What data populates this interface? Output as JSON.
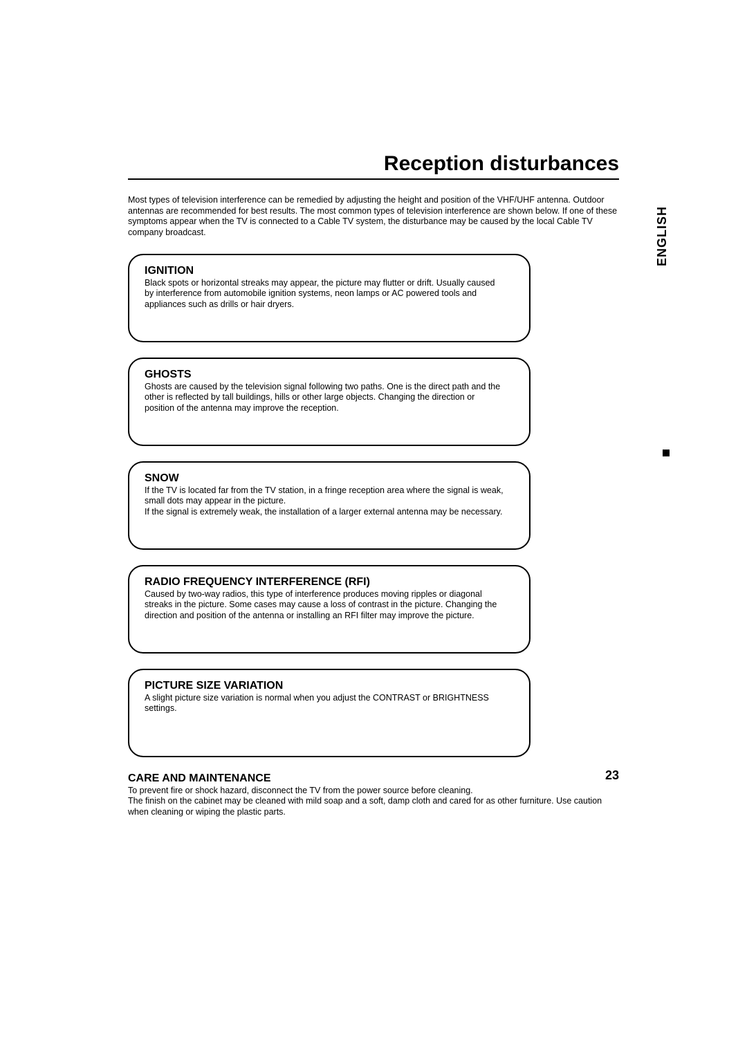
{
  "page_title": "Reception disturbances",
  "language_label": "ENGLISH",
  "page_number": "23",
  "intro": "Most types of television interference can be remedied by adjusting the height and position of the VHF/UHF antenna. Outdoor antennas are recommended for best results. The most common types of television interference are shown below. If one of these symptoms appear when the TV is connected to a Cable TV system, the disturbance may be caused by the local Cable TV company broadcast.",
  "boxes": [
    {
      "title": "IGNITION",
      "body": "Black spots or horizontal streaks may appear, the picture may flutter or drift. Usually caused by interference from automobile ignition systems, neon lamps or AC powered tools and appliances such as drills or hair dryers."
    },
    {
      "title": "GHOSTS",
      "body": "Ghosts are caused by the television signal following two paths. One is the direct path and the other is reflected by tall buildings, hills or other large objects. Changing the direction or position of the antenna may improve the reception."
    },
    {
      "title": "SNOW",
      "body": "If the TV is located far from the TV station, in a fringe reception area where the signal is weak, small dots may appear in the picture.\nIf the signal is extremely weak, the installation of a larger external antenna may be necessary."
    },
    {
      "title": "RADIO FREQUENCY INTERFERENCE (RFI)",
      "body": "Caused by two-way radios, this type of interference produces moving ripples or diagonal streaks in the picture. Some cases may cause a loss of contrast in the picture. Changing the direction and position of the antenna or installing an RFI filter may improve the picture."
    },
    {
      "title": "PICTURE SIZE VARIATION",
      "body": "A slight picture size variation is normal when you adjust the CONTRAST or BRIGHTNESS settings."
    }
  ],
  "care": {
    "title": "CARE AND MAINTENANCE",
    "body": "To prevent fire or shock hazard, disconnect the TV from the power source before cleaning.\nThe finish on the cabinet may be cleaned with mild soap and a soft, damp cloth and cared for as other furniture. Use caution when cleaning or wiping the plastic parts."
  }
}
